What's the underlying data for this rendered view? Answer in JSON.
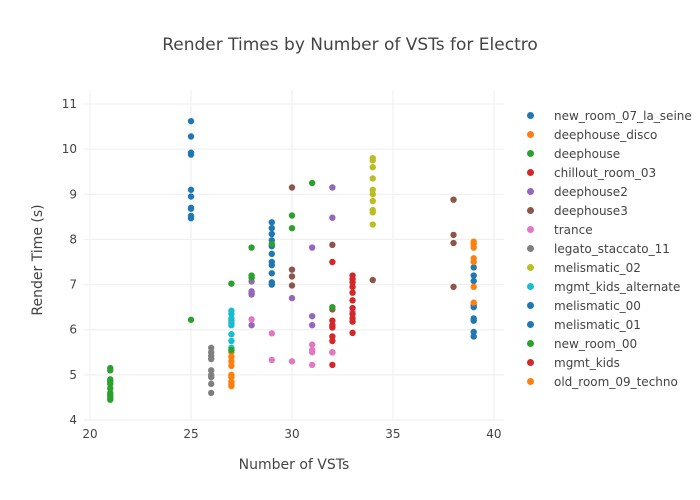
{
  "chart_data": {
    "type": "scatter",
    "title": "Render Times by Number of VSTs for Electro",
    "xlabel": "Number of VSTs",
    "ylabel": "Render Time (s)",
    "xlim": [
      19.7,
      40.5
    ],
    "ylim": [
      4,
      11.31
    ],
    "xticks": [
      20,
      25,
      30,
      35,
      40
    ],
    "yticks": [
      4,
      5,
      6,
      7,
      8,
      9,
      10,
      11
    ],
    "grid": true,
    "legend_position": "right",
    "series": [
      {
        "name": "new_room_07_la_seine",
        "color": "#1f77b4",
        "x": [
          25,
          25,
          25,
          25,
          25,
          25,
          25,
          25,
          25,
          25
        ],
        "y": [
          10.62,
          10.28,
          9.92,
          9.88,
          9.1,
          8.95,
          8.7,
          8.68,
          8.52,
          8.47
        ]
      },
      {
        "name": "deephouse_disco",
        "color": "#ff7f0e",
        "x": [
          27,
          27,
          27,
          27,
          27,
          27,
          27,
          27,
          27
        ],
        "y": [
          5.5,
          5.4,
          5.3,
          5.2,
          5.0,
          4.95,
          4.85,
          4.8,
          4.75
        ]
      },
      {
        "name": "deephouse",
        "color": "#2ca02c",
        "x": [
          21,
          21,
          21,
          21,
          21,
          21,
          21,
          21,
          21,
          21
        ],
        "y": [
          5.15,
          5.1,
          4.9,
          4.85,
          4.8,
          4.7,
          4.6,
          4.55,
          4.5,
          4.45
        ]
      },
      {
        "name": "chillout_room_03",
        "color": "#d62728",
        "x": [
          32,
          32,
          32,
          32,
          32,
          32,
          32,
          32
        ],
        "y": [
          7.5,
          6.2,
          6.1,
          6.05,
          5.85,
          5.75,
          5.5,
          5.22
        ]
      },
      {
        "name": "deephouse2",
        "color": "#9467bd",
        "x": [
          27,
          28,
          28,
          28,
          28,
          28,
          30,
          31,
          31,
          31,
          32,
          32
        ],
        "y": [
          6.15,
          7.07,
          6.85,
          6.8,
          6.78,
          6.1,
          6.7,
          7.82,
          6.3,
          6.1,
          9.15,
          8.48
        ]
      },
      {
        "name": "deephouse3",
        "color": "#8c564b",
        "x": [
          30,
          30,
          30,
          30,
          32,
          32,
          34,
          38,
          38,
          38,
          38
        ],
        "y": [
          9.15,
          7.33,
          7.18,
          6.98,
          7.88,
          6.45,
          7.1,
          8.88,
          8.1,
          7.92,
          6.95
        ]
      },
      {
        "name": "trance",
        "color": "#e377c2",
        "x": [
          28,
          29,
          29,
          30,
          31,
          31,
          31,
          31,
          32,
          33
        ],
        "y": [
          6.23,
          5.92,
          5.33,
          5.3,
          5.67,
          5.55,
          5.5,
          5.22,
          5.5,
          6.4
        ]
      },
      {
        "name": "legato_staccato_11",
        "color": "#7f7f7f",
        "x": [
          26,
          26,
          26,
          26,
          26,
          26,
          26,
          26,
          26
        ],
        "y": [
          5.6,
          5.5,
          5.42,
          5.35,
          5.1,
          5.0,
          4.95,
          4.8,
          4.6
        ]
      },
      {
        "name": "melismatic_02",
        "color": "#bcbd22",
        "x": [
          34,
          34,
          34,
          34,
          34,
          34,
          34,
          34,
          34,
          34
        ],
        "y": [
          9.8,
          9.75,
          9.6,
          9.35,
          9.1,
          9.0,
          8.85,
          8.65,
          8.6,
          8.33
        ]
      },
      {
        "name": "mgmt_kids_alternate",
        "color": "#17becf",
        "x": [
          27,
          27,
          27,
          27,
          27,
          27,
          27,
          27
        ],
        "y": [
          6.42,
          6.35,
          6.25,
          6.2,
          6.1,
          5.9,
          5.75,
          5.6
        ]
      },
      {
        "name": "melismatic_00",
        "color": "#1f77b4",
        "x": [
          29,
          29,
          29,
          29,
          29,
          29,
          29,
          29,
          29,
          29,
          29
        ],
        "y": [
          8.38,
          8.25,
          8.12,
          7.98,
          7.85,
          7.68,
          7.5,
          7.43,
          7.25,
          7.05,
          7.0
        ]
      },
      {
        "name": "melismatic_01",
        "color": "#1f77b4",
        "x": [
          39,
          39,
          39,
          39,
          39,
          39,
          39,
          39,
          39
        ],
        "y": [
          7.38,
          7.2,
          7.08,
          6.55,
          6.5,
          6.25,
          6.2,
          5.95,
          5.85
        ]
      },
      {
        "name": "new_room_00",
        "color": "#2ca02c",
        "x": [
          25,
          27,
          27,
          28,
          28,
          28,
          29,
          30,
          30,
          31,
          32
        ],
        "y": [
          6.22,
          7.02,
          5.55,
          7.82,
          7.2,
          7.15,
          7.9,
          8.53,
          8.25,
          9.25,
          6.5
        ]
      },
      {
        "name": "mgmt_kids",
        "color": "#d62728",
        "x": [
          33,
          33,
          33,
          33,
          33,
          33,
          33,
          33,
          33,
          33,
          33
        ],
        "y": [
          7.2,
          7.12,
          7.05,
          6.95,
          6.82,
          6.65,
          6.48,
          6.35,
          6.25,
          6.18,
          5.93
        ]
      },
      {
        "name": "old_room_09_techno",
        "color": "#ff7f0e",
        "x": [
          39,
          39,
          39,
          39,
          39,
          39,
          39
        ],
        "y": [
          7.95,
          7.9,
          7.82,
          7.58,
          7.5,
          6.95,
          6.6
        ]
      }
    ]
  }
}
